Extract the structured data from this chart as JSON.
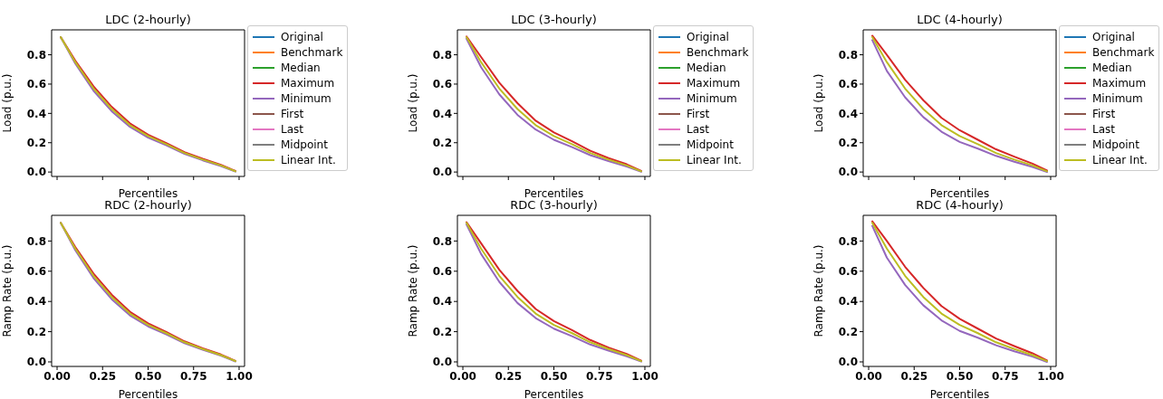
{
  "chart_data": [
    {
      "type": "line",
      "title": "LDC (2-hourly)",
      "xlabel": "Percentiles",
      "ylabel": "Load (p.u.)",
      "legend": "right",
      "tick_labels": "y",
      "xlim": [
        -0.03,
        1.03
      ],
      "ylim": [
        -0.03,
        0.97
      ],
      "xticks": [
        {
          "value": 0,
          "label": null
        },
        {
          "value": 0.25,
          "label": null
        },
        {
          "value": 0.5,
          "label": null
        },
        {
          "value": 0.75,
          "label": null
        },
        {
          "value": 1,
          "label": null
        }
      ],
      "yticks": [
        {
          "value": 0,
          "label": "0.0"
        },
        {
          "value": 0.2,
          "label": "0.2"
        },
        {
          "value": 0.4,
          "label": "0.4"
        },
        {
          "value": 0.6,
          "label": "0.6"
        },
        {
          "value": 0.8,
          "label": "0.8"
        }
      ],
      "x": [
        0.02,
        0.1,
        0.2,
        0.3,
        0.4,
        0.5,
        0.6,
        0.7,
        0.8,
        0.9,
        0.98
      ],
      "series": [
        {
          "name": "Original",
          "color": "#1f77b4",
          "values": [
            null,
            null,
            null,
            null,
            null,
            null,
            null,
            null,
            null,
            null,
            null
          ]
        },
        {
          "name": "Benchmark",
          "color": "#ff7f0e",
          "values": [
            null,
            null,
            null,
            null,
            null,
            null,
            null,
            null,
            null,
            null,
            null
          ]
        },
        {
          "name": "Median",
          "color": "#2ca02c",
          "values": [
            null,
            null,
            null,
            null,
            null,
            null,
            null,
            null,
            null,
            null,
            null
          ]
        },
        {
          "name": "Maximum",
          "color": "#d62728",
          "values": [
            0.92,
            0.76,
            0.585,
            0.445,
            0.332,
            0.255,
            0.198,
            0.136,
            0.09,
            0.049,
            0.007
          ]
        },
        {
          "name": "Minimum",
          "color": "#9467bd",
          "values": [
            0.92,
            0.74,
            0.555,
            0.415,
            0.308,
            0.235,
            0.182,
            0.124,
            0.08,
            0.041,
            0.003
          ]
        },
        {
          "name": "First",
          "color": "#8c564b",
          "values": [
            null,
            null,
            null,
            null,
            null,
            null,
            null,
            null,
            null,
            null,
            null
          ]
        },
        {
          "name": "Last",
          "color": "#e377c2",
          "values": [
            null,
            null,
            null,
            null,
            null,
            null,
            null,
            null,
            null,
            null,
            null
          ]
        },
        {
          "name": "Midpoint",
          "color": "#7f7f7f",
          "values": [
            null,
            null,
            null,
            null,
            null,
            null,
            null,
            null,
            null,
            null,
            null
          ]
        },
        {
          "name": "Linear Int.",
          "color": "#bcbd22",
          "values": [
            0.92,
            0.75,
            0.57,
            0.43,
            0.32,
            0.245,
            0.19,
            0.13,
            0.085,
            0.045,
            0.005
          ]
        }
      ]
    },
    {
      "type": "line",
      "title": "LDC (3-hourly)",
      "xlabel": "Percentiles",
      "ylabel": "Load (p.u.)",
      "legend": "right",
      "tick_labels": "y",
      "xlim": [
        -0.03,
        1.03
      ],
      "ylim": [
        -0.03,
        0.97
      ],
      "xticks": [
        {
          "value": 0,
          "label": null
        },
        {
          "value": 0.25,
          "label": null
        },
        {
          "value": 0.5,
          "label": null
        },
        {
          "value": 0.75,
          "label": null
        },
        {
          "value": 1,
          "label": null
        }
      ],
      "yticks": [
        {
          "value": 0,
          "label": "0.0"
        },
        {
          "value": 0.2,
          "label": "0.2"
        },
        {
          "value": 0.4,
          "label": "0.4"
        },
        {
          "value": 0.6,
          "label": "0.6"
        },
        {
          "value": 0.8,
          "label": "0.8"
        }
      ],
      "x": [
        0.02,
        0.1,
        0.2,
        0.3,
        0.4,
        0.5,
        0.6,
        0.7,
        0.8,
        0.9,
        0.98
      ],
      "series": [
        {
          "name": "Original",
          "color": "#1f77b4",
          "values": [
            null,
            null,
            null,
            null,
            null,
            null,
            null,
            null,
            null,
            null,
            null
          ]
        },
        {
          "name": "Benchmark",
          "color": "#ff7f0e",
          "values": [
            null,
            null,
            null,
            null,
            null,
            null,
            null,
            null,
            null,
            null,
            null
          ]
        },
        {
          "name": "Median",
          "color": "#2ca02c",
          "values": [
            null,
            null,
            null,
            null,
            null,
            null,
            null,
            null,
            null,
            null,
            null
          ]
        },
        {
          "name": "Maximum",
          "color": "#d62728",
          "values": [
            0.925,
            0.785,
            0.61,
            0.47,
            0.35,
            0.27,
            0.21,
            0.145,
            0.095,
            0.053,
            0.008
          ]
        },
        {
          "name": "Minimum",
          "color": "#9467bd",
          "values": [
            0.91,
            0.715,
            0.53,
            0.39,
            0.29,
            0.22,
            0.17,
            0.115,
            0.075,
            0.037,
            0.002
          ]
        },
        {
          "name": "First",
          "color": "#8c564b",
          "values": [
            null,
            null,
            null,
            null,
            null,
            null,
            null,
            null,
            null,
            null,
            null
          ]
        },
        {
          "name": "Last",
          "color": "#e377c2",
          "values": [
            null,
            null,
            null,
            null,
            null,
            null,
            null,
            null,
            null,
            null,
            null
          ]
        },
        {
          "name": "Midpoint",
          "color": "#7f7f7f",
          "values": [
            null,
            null,
            null,
            null,
            null,
            null,
            null,
            null,
            null,
            null,
            null
          ]
        },
        {
          "name": "Linear Int.",
          "color": "#bcbd22",
          "values": [
            0.92,
            0.75,
            0.57,
            0.43,
            0.32,
            0.245,
            0.19,
            0.13,
            0.085,
            0.045,
            0.005
          ]
        }
      ]
    },
    {
      "type": "line",
      "title": "LDC (4-hourly)",
      "xlabel": "Percentiles",
      "ylabel": "Load (p.u.)",
      "legend": "right",
      "tick_labels": "y",
      "xlim": [
        -0.03,
        1.03
      ],
      "ylim": [
        -0.03,
        0.97
      ],
      "xticks": [
        {
          "value": 0,
          "label": null
        },
        {
          "value": 0.25,
          "label": null
        },
        {
          "value": 0.5,
          "label": null
        },
        {
          "value": 0.75,
          "label": null
        },
        {
          "value": 1,
          "label": null
        }
      ],
      "yticks": [
        {
          "value": 0,
          "label": "0.0"
        },
        {
          "value": 0.2,
          "label": "0.2"
        },
        {
          "value": 0.4,
          "label": "0.4"
        },
        {
          "value": 0.6,
          "label": "0.6"
        },
        {
          "value": 0.8,
          "label": "0.8"
        }
      ],
      "x": [
        0.02,
        0.1,
        0.2,
        0.3,
        0.4,
        0.5,
        0.6,
        0.7,
        0.8,
        0.9,
        0.98
      ],
      "series": [
        {
          "name": "Original",
          "color": "#1f77b4",
          "values": [
            null,
            null,
            null,
            null,
            null,
            null,
            null,
            null,
            null,
            null,
            null
          ]
        },
        {
          "name": "Benchmark",
          "color": "#ff7f0e",
          "values": [
            null,
            null,
            null,
            null,
            null,
            null,
            null,
            null,
            null,
            null,
            null
          ]
        },
        {
          "name": "Median",
          "color": "#2ca02c",
          "values": [
            null,
            null,
            null,
            null,
            null,
            null,
            null,
            null,
            null,
            null,
            null
          ]
        },
        {
          "name": "Maximum",
          "color": "#d62728",
          "values": [
            0.93,
            0.8,
            0.63,
            0.49,
            0.37,
            0.285,
            0.22,
            0.155,
            0.105,
            0.057,
            0.01
          ]
        },
        {
          "name": "Minimum",
          "color": "#9467bd",
          "values": [
            0.9,
            0.69,
            0.51,
            0.375,
            0.275,
            0.205,
            0.16,
            0.11,
            0.07,
            0.035,
            0.0
          ]
        },
        {
          "name": "First",
          "color": "#8c564b",
          "values": [
            null,
            null,
            null,
            null,
            null,
            null,
            null,
            null,
            null,
            null,
            null
          ]
        },
        {
          "name": "Last",
          "color": "#e377c2",
          "values": [
            null,
            null,
            null,
            null,
            null,
            null,
            null,
            null,
            null,
            null,
            null
          ]
        },
        {
          "name": "Midpoint",
          "color": "#7f7f7f",
          "values": [
            null,
            null,
            null,
            null,
            null,
            null,
            null,
            null,
            null,
            null,
            null
          ]
        },
        {
          "name": "Linear Int.",
          "color": "#bcbd22",
          "values": [
            0.92,
            0.75,
            0.57,
            0.43,
            0.32,
            0.245,
            0.19,
            0.13,
            0.085,
            0.045,
            0.005
          ]
        }
      ]
    },
    {
      "type": "line",
      "title": "RDC (2-hourly)",
      "xlabel": "Percentiles",
      "ylabel": "Ramp Rate (p.u.)",
      "xlim": [
        -0.03,
        1.03
      ],
      "ylim": [
        -0.03,
        0.97
      ],
      "xticks": [
        {
          "value": 0,
          "label": "0.00"
        },
        {
          "value": 0.25,
          "label": "0.25"
        },
        {
          "value": 0.5,
          "label": "0.50"
        },
        {
          "value": 0.75,
          "label": "0.75"
        },
        {
          "value": 1,
          "label": "1.00"
        }
      ],
      "yticks": [
        {
          "value": 0,
          "label": "0.0"
        },
        {
          "value": 0.2,
          "label": "0.2"
        },
        {
          "value": 0.4,
          "label": "0.4"
        },
        {
          "value": 0.6,
          "label": "0.6"
        },
        {
          "value": 0.8,
          "label": "0.8"
        }
      ],
      "x": [
        0.02,
        0.1,
        0.2,
        0.3,
        0.4,
        0.5,
        0.6,
        0.7,
        0.8,
        0.9,
        0.98
      ],
      "series": [
        {
          "color": "#d62728",
          "values": [
            0.92,
            0.76,
            0.585,
            0.445,
            0.332,
            0.255,
            0.198,
            0.136,
            0.09,
            0.049,
            0.007
          ]
        },
        {
          "color": "#9467bd",
          "values": [
            0.92,
            0.74,
            0.555,
            0.415,
            0.308,
            0.235,
            0.182,
            0.124,
            0.08,
            0.041,
            0.003
          ]
        },
        {
          "color": "#bcbd22",
          "values": [
            0.92,
            0.75,
            0.57,
            0.43,
            0.32,
            0.245,
            0.19,
            0.13,
            0.085,
            0.045,
            0.005
          ]
        }
      ]
    },
    {
      "type": "line",
      "title": "RDC (3-hourly)",
      "xlabel": "Percentiles",
      "ylabel": "Ramp Rate (p.u.)",
      "xlim": [
        -0.03,
        1.03
      ],
      "ylim": [
        -0.03,
        0.97
      ],
      "xticks": [
        {
          "value": 0,
          "label": "0.00"
        },
        {
          "value": 0.25,
          "label": "0.25"
        },
        {
          "value": 0.5,
          "label": "0.50"
        },
        {
          "value": 0.75,
          "label": "0.75"
        },
        {
          "value": 1,
          "label": "1.00"
        }
      ],
      "yticks": [
        {
          "value": 0,
          "label": "0.0"
        },
        {
          "value": 0.2,
          "label": "0.2"
        },
        {
          "value": 0.4,
          "label": "0.4"
        },
        {
          "value": 0.6,
          "label": "0.6"
        },
        {
          "value": 0.8,
          "label": "0.8"
        }
      ],
      "x": [
        0.02,
        0.1,
        0.2,
        0.3,
        0.4,
        0.5,
        0.6,
        0.7,
        0.8,
        0.9,
        0.98
      ],
      "series": [
        {
          "color": "#d62728",
          "values": [
            0.925,
            0.785,
            0.61,
            0.47,
            0.35,
            0.27,
            0.21,
            0.145,
            0.095,
            0.053,
            0.008
          ]
        },
        {
          "color": "#9467bd",
          "values": [
            0.91,
            0.715,
            0.53,
            0.39,
            0.29,
            0.22,
            0.17,
            0.115,
            0.075,
            0.037,
            0.002
          ]
        },
        {
          "color": "#bcbd22",
          "values": [
            0.92,
            0.75,
            0.57,
            0.43,
            0.32,
            0.245,
            0.19,
            0.13,
            0.085,
            0.045,
            0.005
          ]
        }
      ]
    },
    {
      "type": "line",
      "title": "RDC (4-hourly)",
      "xlabel": "Percentiles",
      "ylabel": "Ramp Rate (p.u.)",
      "xlim": [
        -0.03,
        1.03
      ],
      "ylim": [
        -0.03,
        0.97
      ],
      "xticks": [
        {
          "value": 0,
          "label": "0.00"
        },
        {
          "value": 0.25,
          "label": "0.25"
        },
        {
          "value": 0.5,
          "label": "0.50"
        },
        {
          "value": 0.75,
          "label": "0.75"
        },
        {
          "value": 1,
          "label": "1.00"
        }
      ],
      "yticks": [
        {
          "value": 0,
          "label": "0.0"
        },
        {
          "value": 0.2,
          "label": "0.2"
        },
        {
          "value": 0.4,
          "label": "0.4"
        },
        {
          "value": 0.6,
          "label": "0.6"
        },
        {
          "value": 0.8,
          "label": "0.8"
        }
      ],
      "x": [
        0.02,
        0.1,
        0.2,
        0.3,
        0.4,
        0.5,
        0.6,
        0.7,
        0.8,
        0.9,
        0.98
      ],
      "series": [
        {
          "color": "#d62728",
          "values": [
            0.93,
            0.8,
            0.63,
            0.49,
            0.37,
            0.285,
            0.22,
            0.155,
            0.105,
            0.057,
            0.01
          ]
        },
        {
          "color": "#9467bd",
          "values": [
            0.9,
            0.69,
            0.51,
            0.375,
            0.275,
            0.205,
            0.16,
            0.11,
            0.07,
            0.035,
            0.0
          ]
        },
        {
          "color": "#bcbd22",
          "values": [
            0.92,
            0.75,
            0.57,
            0.43,
            0.32,
            0.245,
            0.19,
            0.13,
            0.085,
            0.045,
            0.005
          ]
        }
      ]
    }
  ]
}
